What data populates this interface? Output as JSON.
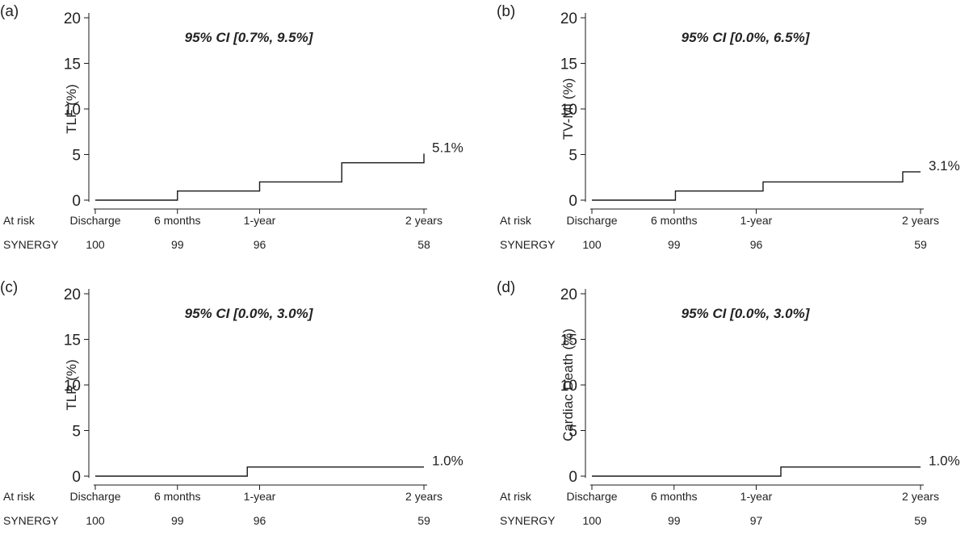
{
  "risk_label": "At risk",
  "group_label": "SYNERGY",
  "colors": {
    "line": "#1a1a1a",
    "text": "#222222",
    "background": "#ffffff"
  },
  "chart_data": [
    {
      "type": "line",
      "step": true,
      "panel": "(a)",
      "title": "95% CI [0.7%, 9.5%]",
      "ylabel": "TLF (%)",
      "xlabel": "",
      "ylim": [
        0,
        20
      ],
      "yticks": [
        0,
        5,
        10,
        15,
        20
      ],
      "xlim": [
        0,
        24
      ],
      "xticks": [
        0,
        6,
        12,
        24
      ],
      "xtick_labels": [
        "Discharge",
        "6 months",
        "1-year",
        "2 years"
      ],
      "at_risk": [
        "100",
        "99",
        "96",
        "58"
      ],
      "x": [
        0,
        6,
        12,
        18,
        24
      ],
      "step_x": [
        0,
        6,
        12,
        18,
        24
      ],
      "step_y": [
        0,
        1.0,
        2.0,
        4.1,
        5.1
      ],
      "end_label": "5.1%",
      "legend": "none",
      "grid": false
    },
    {
      "type": "line",
      "step": true,
      "panel": "(b)",
      "title": "95% CI [0.0%, 6.5%]",
      "ylabel": "TV-MI (%)",
      "xlabel": "",
      "ylim": [
        0,
        20
      ],
      "yticks": [
        0,
        5,
        10,
        15,
        20
      ],
      "xlim": [
        0,
        24
      ],
      "xticks": [
        0,
        6,
        12,
        24
      ],
      "xtick_labels": [
        "Discharge",
        "6 months",
        "1-year",
        "2 years"
      ],
      "at_risk": [
        "100",
        "99",
        "96",
        "59"
      ],
      "step_x": [
        0,
        6.1,
        12.5,
        22.7
      ],
      "step_y": [
        0,
        1.0,
        2.0,
        3.1
      ],
      "end_label": "3.1%",
      "legend": "none",
      "grid": false
    },
    {
      "type": "line",
      "step": true,
      "panel": "(c)",
      "title": "95% CI [0.0%, 3.0%]",
      "ylabel": "TLR (%)",
      "xlabel": "",
      "ylim": [
        0,
        20
      ],
      "yticks": [
        0,
        5,
        10,
        15,
        20
      ],
      "xlim": [
        0,
        24
      ],
      "xticks": [
        0,
        6,
        12,
        24
      ],
      "xtick_labels": [
        "Discharge",
        "6 months",
        "1-year",
        "2 years"
      ],
      "at_risk": [
        "100",
        "99",
        "96",
        "59"
      ],
      "step_x": [
        0,
        11.1
      ],
      "step_y": [
        0,
        1.0
      ],
      "end_label": "1.0%",
      "legend": "none",
      "grid": false
    },
    {
      "type": "line",
      "step": true,
      "panel": "(d)",
      "title": "95% CI [0.0%, 3.0%]",
      "ylabel": "Cardiac Death (%)",
      "xlabel": "",
      "ylim": [
        0,
        20
      ],
      "yticks": [
        0,
        5,
        10,
        15,
        20
      ],
      "xlim": [
        0,
        24
      ],
      "xticks": [
        0,
        6,
        12,
        24
      ],
      "xtick_labels": [
        "Discharge",
        "6 months",
        "1-year",
        "2 years"
      ],
      "at_risk": [
        "100",
        "99",
        "97",
        "59"
      ],
      "step_x": [
        0,
        13.8
      ],
      "step_y": [
        0,
        1.0
      ],
      "end_label": "1.0%",
      "legend": "none",
      "grid": false
    }
  ]
}
